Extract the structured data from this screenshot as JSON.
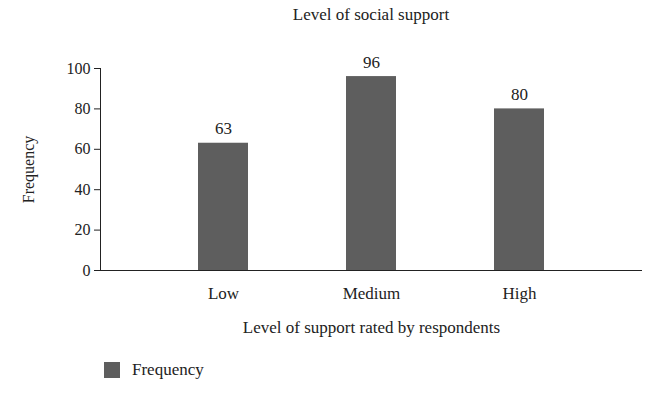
{
  "chart_data": {
    "type": "bar",
    "title": "Level of social support",
    "categories": [
      "Low",
      "Medium",
      "High"
    ],
    "series": [
      {
        "name": "Frequency",
        "color": "#5e5e5e",
        "values": [
          63,
          96,
          80
        ]
      }
    ],
    "xlabel": "Level of support rated by respondents",
    "ylabel": "Frequency",
    "ylim": [
      0,
      100
    ],
    "yticks": [
      0,
      20,
      40,
      60,
      80,
      100
    ],
    "grid": false,
    "data_labels": true,
    "legend": "bottom-left"
  }
}
